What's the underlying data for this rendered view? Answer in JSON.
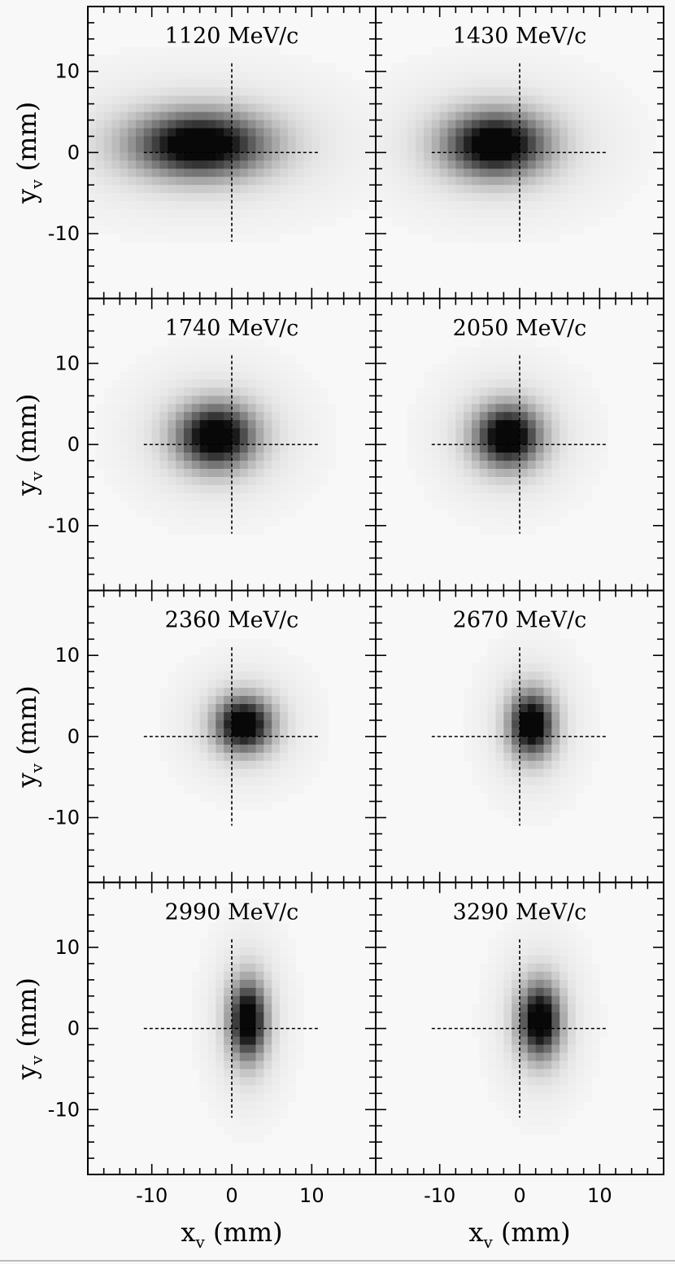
{
  "chart_data": {
    "type": "heatmap",
    "layout": "4 rows x 2 columns of 2D intensity maps",
    "xlabel": "x",
    "xlabel_sub": "v",
    "xlabel_unit": "(mm)",
    "ylabel": "y",
    "ylabel_sub": "v",
    "ylabel_unit": "(mm)",
    "xlim": [
      -18,
      18
    ],
    "ylim": [
      -18,
      18
    ],
    "x_ticks": [
      -10,
      0,
      10
    ],
    "y_ticks": [
      -10,
      0,
      10
    ],
    "x_tick_labels": [
      "-10",
      "0",
      "10"
    ],
    "y_tick_labels": [
      "-10",
      "0",
      "10"
    ],
    "crosshair": {
      "x": 0,
      "y": 0,
      "half_length": 11,
      "style": "dashed"
    },
    "colormap": "grayscale (white = low, black = high)",
    "panels": [
      {
        "title": "1120 MeV/c",
        "peak_x": -4.0,
        "peak_y": 1.0,
        "sigma_x": 5.5,
        "sigma_y": 2.6
      },
      {
        "title": "1430 MeV/c",
        "peak_x": -3.0,
        "peak_y": 1.0,
        "sigma_x": 4.2,
        "sigma_y": 2.6
      },
      {
        "title": "1740 MeV/c",
        "peak_x": -2.0,
        "peak_y": 1.0,
        "sigma_x": 3.2,
        "sigma_y": 2.6
      },
      {
        "title": "2050 MeV/c",
        "peak_x": -1.5,
        "peak_y": 1.0,
        "sigma_x": 2.7,
        "sigma_y": 2.5
      },
      {
        "title": "2360 MeV/c",
        "peak_x": 1.5,
        "peak_y": 1.5,
        "sigma_x": 2.3,
        "sigma_y": 2.2
      },
      {
        "title": "2670 MeV/c",
        "peak_x": 1.5,
        "peak_y": 1.5,
        "sigma_x": 1.8,
        "sigma_y": 2.6
      },
      {
        "title": "2990 MeV/c",
        "peak_x": 2.0,
        "peak_y": 1.0,
        "sigma_x": 1.5,
        "sigma_y": 3.2
      },
      {
        "title": "3290 MeV/c",
        "peak_x": 2.5,
        "peak_y": 1.0,
        "sigma_x": 1.7,
        "sigma_y": 3.0
      }
    ]
  }
}
